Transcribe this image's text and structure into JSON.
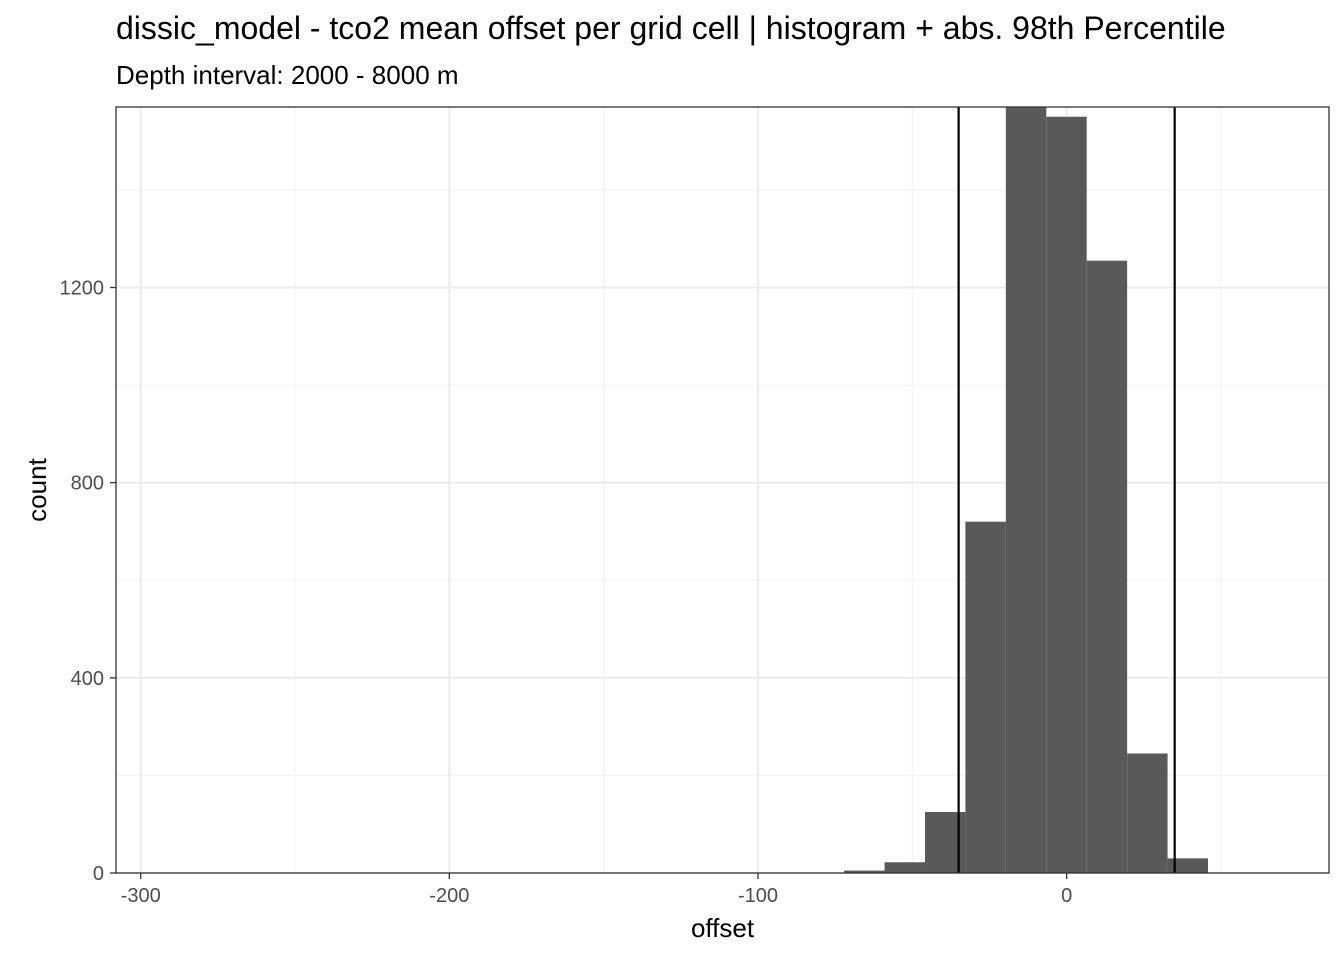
{
  "chart_data": {
    "type": "bar",
    "title": "dissic_model  -  tco2 mean offset per grid cell | histogram + abs. 98th Percentile",
    "subtitle": "Depth interval: 2000 - 8000 m",
    "xlabel": "offset",
    "ylabel": "count",
    "xlim": [
      -308,
      85
    ],
    "ylim": [
      0,
      1570
    ],
    "x_ticks": [
      -300,
      -200,
      -100,
      0
    ],
    "x_tick_labels": [
      "-300",
      "-200",
      "-100",
      "0"
    ],
    "y_ticks": [
      0,
      400,
      800,
      1200
    ],
    "y_tick_labels": [
      "0",
      "400",
      "800",
      "1200"
    ],
    "bin_width": 13.1,
    "bins": [
      {
        "x0": -72.1,
        "x1": -59.0,
        "count": 5
      },
      {
        "x0": -59.0,
        "x1": -45.9,
        "count": 22
      },
      {
        "x0": -45.9,
        "x1": -32.8,
        "count": 125
      },
      {
        "x0": -32.8,
        "x1": -19.7,
        "count": 720
      },
      {
        "x0": -19.7,
        "x1": -6.6,
        "count": 1570
      },
      {
        "x0": -6.6,
        "x1": 6.5,
        "count": 1550
      },
      {
        "x0": 6.5,
        "x1": 19.6,
        "count": 1255
      },
      {
        "x0": 19.6,
        "x1": 32.7,
        "count": 245
      },
      {
        "x0": 32.7,
        "x1": 45.8,
        "count": 30
      }
    ],
    "vlines": [
      -35,
      35
    ],
    "grid": true,
    "colors": {
      "bar": "#595959",
      "vline": "#000000",
      "grid_major": "#ebebeb",
      "grid_minor": "#f2f2f2",
      "panel_border": "#333333"
    }
  }
}
